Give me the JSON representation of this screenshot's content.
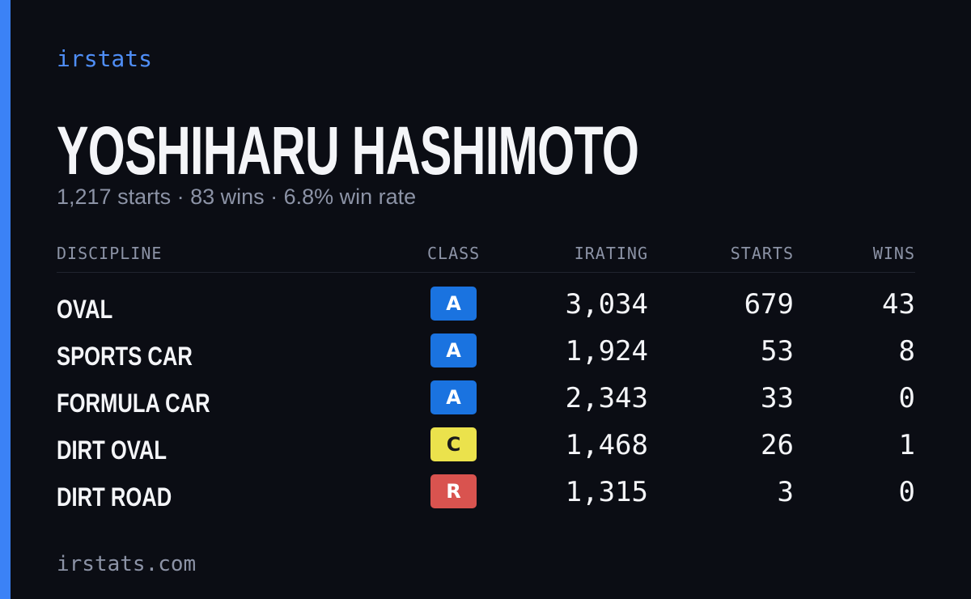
{
  "header": {
    "brand": "irstats",
    "name": "YOSHIHARU HASHIMOTO",
    "subtitle": "1,217 starts · 83 wins · 6.8% win rate"
  },
  "table": {
    "columns": [
      "DISCIPLINE",
      "CLASS",
      "IRATING",
      "STARTS",
      "WINS"
    ],
    "rows": [
      {
        "discipline": "OVAL",
        "class": "A",
        "badge_color": "#1a73e0",
        "badge_text_color": "#ffffff",
        "irating": "3,034",
        "starts": "679",
        "wins": "43"
      },
      {
        "discipline": "SPORTS CAR",
        "class": "A",
        "badge_color": "#1a73e0",
        "badge_text_color": "#ffffff",
        "irating": "1,924",
        "starts": "53",
        "wins": "8"
      },
      {
        "discipline": "FORMULA CAR",
        "class": "A",
        "badge_color": "#1a73e0",
        "badge_text_color": "#ffffff",
        "irating": "2,343",
        "starts": "33",
        "wins": "0"
      },
      {
        "discipline": "DIRT OVAL",
        "class": "C",
        "badge_color": "#ebe24c",
        "badge_text_color": "#1a1a1a",
        "irating": "1,468",
        "starts": "26",
        "wins": "1"
      },
      {
        "discipline": "DIRT ROAD",
        "class": "R",
        "badge_color": "#d9534f",
        "badge_text_color": "#ffffff",
        "irating": "1,315",
        "starts": "3",
        "wins": "0"
      }
    ]
  },
  "footer": {
    "site": "irstats.com"
  }
}
